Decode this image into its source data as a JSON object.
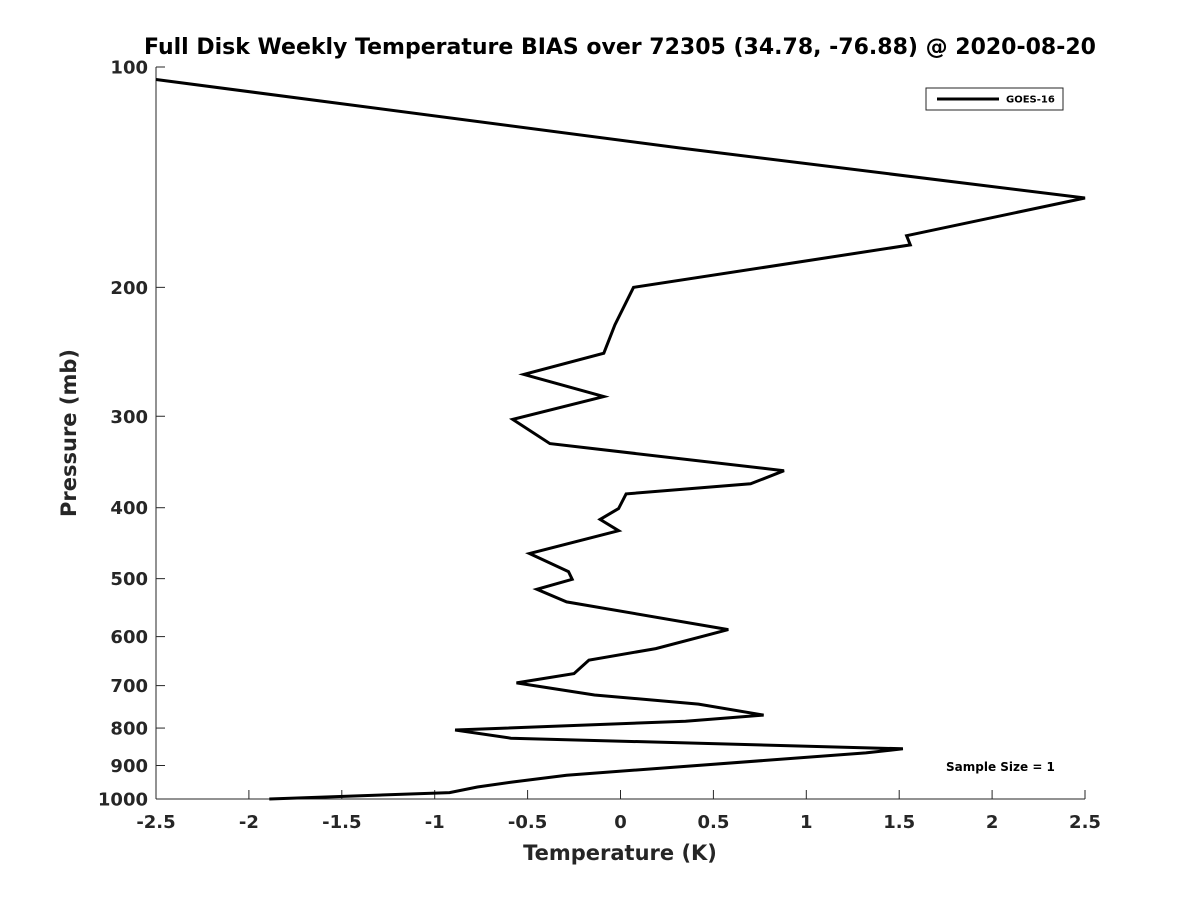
{
  "chart_data": {
    "type": "line",
    "title": "Full Disk Weekly Temperature BIAS over 72305 (34.78, -76.88) @ 2020-08-20",
    "xlabel": "Temperature (K)",
    "ylabel": "Pressure (mb)",
    "xlim": [
      -2.5,
      2.5
    ],
    "ylim": [
      100,
      1000
    ],
    "yscale": "log",
    "y_reversed": true,
    "grid": false,
    "legend_position": "top-right",
    "x_ticks": [
      -2.5,
      -2,
      -1.5,
      -1,
      -0.5,
      0,
      0.5,
      1,
      1.5,
      2,
      2.5
    ],
    "x_tick_labels": [
      "-2.5",
      "-2",
      "-1.5",
      "-1",
      "-0.5",
      "0",
      "0.5",
      "1",
      "1.5",
      "2",
      "2.5"
    ],
    "y_ticks": [
      100,
      200,
      300,
      400,
      500,
      600,
      700,
      800,
      900,
      1000
    ],
    "y_tick_labels": [
      "100",
      "200",
      "300",
      "400",
      "500",
      "600",
      "700",
      "800",
      "900",
      "1000"
    ],
    "annotation": "Sample Size = 1",
    "series": [
      {
        "name": "GOES-16",
        "color": "#000000",
        "x": [
          -2.5,
          0.32,
          2.5,
          1.54,
          1.56,
          0.07,
          -0.03,
          -0.09,
          -0.52,
          -0.09,
          -0.58,
          -0.38,
          0.88,
          0.7,
          0.03,
          -0.01,
          -0.11,
          -0.01,
          -0.49,
          -0.28,
          -0.26,
          -0.45,
          -0.29,
          0.58,
          0.19,
          -0.17,
          -0.25,
          -0.56,
          -0.14,
          0.42,
          0.77,
          0.35,
          -0.89,
          -0.59,
          1.52,
          1.32,
          -0.29,
          -0.58,
          -0.77,
          -0.92,
          -1.89
        ],
        "y": [
          104,
          129,
          151,
          170,
          175,
          200,
          225,
          246,
          263,
          282,
          303,
          327,
          356,
          371,
          383,
          401,
          415,
          430,
          462,
          489,
          501,
          517,
          538,
          587,
          623,
          646,
          674,
          694,
          721,
          742,
          768,
          783,
          805,
          826,
          854,
          865,
          928,
          948,
          963,
          980,
          1000
        ]
      }
    ]
  }
}
